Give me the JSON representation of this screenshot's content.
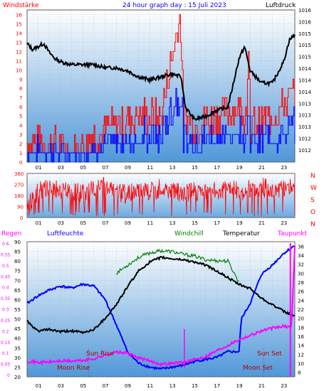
{
  "title": "24 hour graph day : 15 Juli 2023",
  "labels": {
    "wind_speed": "Windstärke",
    "pressure": "Luftdruck",
    "rain": "Regen",
    "humidity": "Luftfeuchte",
    "windchill": "Windchill",
    "temperature": "Temperatur",
    "dewpoint": "Taupunkt",
    "sun_rise": "Sun Rise",
    "sun_set": "Sun Set",
    "moon_rise": "Moon Rise",
    "moon_set": "Moon Set",
    "compass": [
      "N",
      "W",
      "S",
      "O",
      "N"
    ]
  },
  "colors": {
    "wind_gust": "#ff0000",
    "wind_avg": "#0000ff",
    "pressure": "#000000",
    "direction": "#ff0000",
    "humidity": "#0000ff",
    "temperature": "#000000",
    "windchill": "#008000",
    "dewpoint": "#ff00ff",
    "label_red": "#ff0000",
    "label_blue": "#0000ff",
    "label_magenta": "#ff00ff",
    "label_green": "#008000"
  },
  "chart_data": [
    {
      "type": "line",
      "panel": "wind_pressure",
      "x_ticks": [
        "01",
        "03",
        "05",
        "07",
        "09",
        "11",
        "13",
        "15",
        "17",
        "19",
        "21",
        "23"
      ],
      "y_left_ticks": [
        "0",
        "1",
        "2",
        "3",
        "4",
        "5",
        "6",
        "7",
        "8",
        "9",
        "10",
        "11",
        "12",
        "13",
        "14",
        "15",
        "16"
      ],
      "y_right_ticks": [
        "1012",
        "1012",
        "1013",
        "1013",
        "1013",
        "1014",
        "1014",
        "1014",
        "1015",
        "1015",
        "1015",
        "1016",
        "1016"
      ],
      "ylim_left": [
        0,
        16.5
      ],
      "ylim_right": [
        1011.6,
        1016.6
      ],
      "series": [
        {
          "name": "Windstärke",
          "axis": "left",
          "x": [
            0,
            2,
            4,
            5,
            6,
            8,
            10,
            12,
            13.7,
            14,
            15,
            17,
            19,
            20,
            22,
            23.5
          ],
          "values": [
            2,
            2,
            1,
            2,
            3,
            4,
            5,
            5,
            16,
            5,
            4,
            5,
            6,
            4,
            5,
            7
          ]
        },
        {
          "name": "Luftdruck",
          "axis": "right",
          "x": [
            0,
            0.5,
            1,
            1.5,
            2,
            2.5,
            3,
            4,
            5,
            6,
            7,
            8,
            9,
            10,
            11,
            12,
            13,
            13.8,
            14.2,
            15,
            16,
            17,
            18,
            19,
            19.5,
            20,
            21,
            22,
            23,
            23.5,
            24
          ],
          "values": [
            1015.5,
            1015.3,
            1015.4,
            1015.5,
            1015.2,
            1015.0,
            1014.9,
            1014.8,
            1014.8,
            1014.8,
            1014.7,
            1014.7,
            1014.6,
            1014.4,
            1014.3,
            1014.4,
            1014.5,
            1014.4,
            1013.4,
            1013.0,
            1013.1,
            1013.3,
            1013.4,
            1015.0,
            1015.4,
            1014.6,
            1014.2,
            1014.2,
            1014.9,
            1015.6,
            1015.8
          ]
        }
      ]
    },
    {
      "type": "line",
      "panel": "wind_direction",
      "x_ticks": [
        "01",
        "03",
        "05",
        "07",
        "09",
        "11",
        "13",
        "15",
        "17",
        "19",
        "21",
        "23"
      ],
      "y_ticks": [
        "0",
        "90",
        "180",
        "270",
        "360"
      ],
      "ylim": [
        0,
        360
      ],
      "series": [
        {
          "name": "Windrichtung",
          "x": [
            0,
            1,
            2,
            3,
            4,
            5,
            6,
            7,
            8,
            9,
            10,
            11,
            12,
            13,
            14,
            15,
            16,
            17,
            18,
            19,
            20,
            21,
            22,
            23,
            24
          ],
          "values": [
            90,
            220,
            230,
            225,
            210,
            200,
            240,
            250,
            210,
            190,
            230,
            210,
            240,
            220,
            200,
            210,
            230,
            220,
            240,
            210,
            230,
            250,
            220,
            230,
            240
          ]
        }
      ]
    },
    {
      "type": "line",
      "panel": "temp_humidity",
      "x_ticks": [
        "01",
        "03",
        "05",
        "07",
        "09",
        "11",
        "13",
        "15",
        "17",
        "19",
        "21",
        "23"
      ],
      "y_rain_ticks": [
        "0",
        "0.05",
        "0.1",
        "0.15",
        "0.2",
        "0.25",
        "0.3",
        "0.35",
        "0.4",
        "0.45",
        "0.5",
        "0.55",
        "0.6"
      ],
      "y_humidity_ticks": [
        "20",
        "25",
        "30",
        "35",
        "40",
        "45",
        "50",
        "55",
        "60",
        "65",
        "70",
        "75",
        "80",
        "85",
        "90"
      ],
      "y_temp_ticks": [
        "8",
        "10",
        "12",
        "14",
        "16",
        "18",
        "20",
        "22",
        "24",
        "26",
        "28",
        "30",
        "32",
        "34",
        "36"
      ],
      "ylim_humidity": [
        20,
        90
      ],
      "ylim_temp": [
        7,
        37
      ],
      "series": [
        {
          "name": "Luftfeuchte",
          "axis": "humidity",
          "x": [
            0,
            1,
            2,
            3,
            4,
            5,
            6,
            7,
            8,
            9,
            10,
            11,
            12,
            13,
            14,
            15,
            16,
            17,
            18,
            19,
            19.2,
            20,
            21,
            22,
            23,
            24
          ],
          "values": [
            58,
            62,
            65,
            67,
            66,
            68,
            67,
            60,
            47,
            33,
            27,
            25,
            24,
            25,
            26,
            28,
            29,
            30,
            33,
            33,
            50,
            58,
            73,
            78,
            84,
            88
          ]
        },
        {
          "name": "Temperatur",
          "axis": "temp",
          "x": [
            0,
            0.5,
            1,
            2,
            3,
            4,
            5,
            6,
            7,
            8,
            9,
            10,
            11,
            12,
            13,
            14,
            15,
            16,
            17,
            18,
            19,
            20,
            21,
            22,
            23,
            24
          ],
          "values": [
            19.5,
            18,
            17.2,
            17.5,
            17,
            17.2,
            16.8,
            17.5,
            20,
            23,
            27,
            30.5,
            32.5,
            33.5,
            33.2,
            33,
            32.5,
            31.8,
            30.5,
            29,
            27.5,
            26.6,
            24.5,
            23,
            21.5,
            20.5
          ]
        },
        {
          "name": "Windchill",
          "axis": "temp",
          "x": [
            8,
            9,
            10,
            11,
            12,
            13,
            14,
            15,
            16,
            17,
            18,
            19
          ],
          "values": [
            30,
            31.8,
            33.5,
            34.5,
            35,
            34.8,
            34.2,
            33.8,
            33,
            32.8,
            32.7,
            28
          ]
        },
        {
          "name": "Taupunkt",
          "axis": "temp",
          "x": [
            0,
            1,
            2,
            3,
            4,
            5,
            6,
            7,
            8,
            9,
            10,
            11,
            12,
            13,
            14,
            15,
            16,
            17,
            18,
            19,
            20,
            21,
            22,
            23,
            23.7,
            24
          ],
          "values": [
            10.5,
            10.2,
            10.3,
            10.5,
            10.5,
            10.6,
            11,
            11.8,
            12.5,
            12.2,
            11.2,
            10.5,
            9.8,
            10,
            10.2,
            10.8,
            11.5,
            12.8,
            14,
            15.3,
            16.2,
            17.2,
            17.8,
            18.2,
            18,
            36
          ]
        },
        {
          "name": "Regen",
          "axis": "rain",
          "x": [
            0,
            24
          ],
          "values": [
            0,
            0
          ]
        }
      ],
      "markers": {
        "sun_rise": 5.5,
        "sun_set": 21.2
      }
    }
  ]
}
